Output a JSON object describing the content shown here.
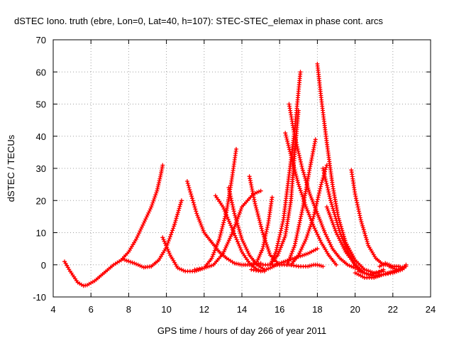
{
  "chart_data": {
    "type": "scatter",
    "title": "dSTEC Iono. truth (ebre, Lon=0, Lat=40, h=107): STEC-STEC_elemax in phase cont. arcs",
    "xlabel": "GPS time / hours of day 266 of year 2011",
    "ylabel": "dSTEC  / TECUs",
    "xlim": [
      4,
      24
    ],
    "ylim": [
      -10,
      70
    ],
    "xticks": [
      4,
      6,
      8,
      10,
      12,
      14,
      16,
      18,
      20,
      22,
      24
    ],
    "yticks": [
      -10,
      0,
      10,
      20,
      30,
      40,
      50,
      60,
      70
    ],
    "xtick_labels": [
      "4",
      "6",
      "8",
      "10",
      "12",
      "14",
      "16",
      "18",
      "20",
      "22",
      "24"
    ],
    "ytick_labels": [
      "-10",
      "0",
      "10",
      "20",
      "30",
      "40",
      "50",
      "60",
      "70"
    ],
    "grid": true,
    "series_color": "#ff0000",
    "marker": "plus",
    "series": [
      {
        "x": [
          4.6,
          4.9,
          5.3,
          5.6,
          5.8,
          6.2,
          6.7,
          7.2,
          7.7
        ],
        "y": [
          1,
          -2,
          -5.5,
          -6.5,
          -6.3,
          -5,
          -2.5,
          0,
          1.8
        ]
      },
      {
        "x": [
          7.6,
          8.0,
          8.4,
          8.8,
          9.2,
          9.5,
          9.7,
          9.8
        ],
        "y": [
          1.5,
          4,
          8,
          13,
          18,
          23,
          28,
          31
        ]
      },
      {
        "x": [
          7.8,
          8.3,
          8.8,
          9.2,
          9.6,
          10.0,
          10.4,
          10.8
        ],
        "y": [
          1.5,
          0.5,
          -0.8,
          -0.5,
          1.5,
          5.5,
          12,
          20
        ]
      },
      {
        "x": [
          9.8,
          10.2,
          10.6,
          11.0,
          11.5,
          12.0,
          12.4,
          12.8,
          13.2,
          13.5,
          13.7
        ],
        "y": [
          8.5,
          3,
          -1,
          -2,
          -2,
          -1,
          2,
          8,
          17,
          28,
          36
        ]
      },
      {
        "x": [
          11.1,
          11.3,
          11.6,
          12.0,
          12.4,
          12.8,
          13.2,
          13.6,
          14.0,
          14.4,
          15.0
        ],
        "y": [
          26,
          22,
          16,
          10,
          7,
          4,
          2,
          0.5,
          0,
          0,
          0.5
        ]
      },
      {
        "x": [
          11.5,
          12.0,
          12.5,
          13.0,
          13.5,
          14.0,
          14.6,
          15.0
        ],
        "y": [
          -1.5,
          -1,
          0,
          3.5,
          10,
          18,
          22,
          23
        ]
      },
      {
        "x": [
          12.6,
          13.0,
          13.5,
          14.0,
          14.4,
          14.8,
          15.2
        ],
        "y": [
          21.5,
          18,
          11,
          4,
          0.5,
          -1.5,
          -2
        ]
      },
      {
        "x": [
          13.3,
          13.6,
          14.0,
          14.4,
          14.8,
          15.2
        ],
        "y": [
          24,
          16,
          8,
          3,
          0,
          -1.5
        ]
      },
      {
        "x": [
          14.4,
          14.7,
          15.1,
          15.5,
          16.0
        ],
        "y": [
          27.5,
          19,
          10,
          3,
          0
        ]
      },
      {
        "x": [
          14.5,
          14.8,
          15.1,
          15.4,
          15.6
        ],
        "y": [
          0,
          1,
          5,
          13,
          21
        ]
      },
      {
        "x": [
          14.5,
          15.0,
          15.5,
          16.0,
          16.5,
          17.0,
          17.5,
          18.0
        ],
        "y": [
          -1.5,
          -2,
          -1,
          0.5,
          1.5,
          2.5,
          3.5,
          5
        ]
      },
      {
        "x": [
          15.0,
          15.5,
          16.0,
          16.5,
          17.0,
          17.5,
          17.8,
          18.0,
          18.3
        ],
        "y": [
          0,
          0,
          0,
          0,
          -0.5,
          -0.5,
          0,
          0,
          -0.5
        ]
      },
      {
        "x": [
          15.5,
          15.8,
          16.2,
          16.5,
          16.8,
          17.0,
          17.1
        ],
        "y": [
          0,
          4,
          14,
          28,
          42,
          54,
          60
        ]
      },
      {
        "x": [
          15.5,
          15.9,
          16.3,
          16.6,
          16.8,
          17.0
        ],
        "y": [
          0,
          3,
          9,
          20,
          35,
          48
        ]
      },
      {
        "x": [
          16.3,
          16.6,
          17.0,
          17.4,
          17.8,
          18.2,
          18.6,
          19.0
        ],
        "y": [
          41,
          34,
          25,
          18,
          12,
          7,
          3,
          0
        ]
      },
      {
        "x": [
          16.5,
          16.8,
          17.2,
          17.6,
          18.0,
          18.4,
          18.8,
          19.2,
          19.6,
          20.0
        ],
        "y": [
          50,
          40,
          30,
          22,
          16,
          10,
          5,
          2,
          0,
          -1
        ]
      },
      {
        "x": [
          16.4,
          16.8,
          17.2,
          17.6,
          17.9
        ],
        "y": [
          0,
          6,
          17,
          30,
          39
        ]
      },
      {
        "x": [
          16.6,
          17.0,
          17.4,
          17.8,
          18.2,
          18.5
        ],
        "y": [
          0,
          3,
          8,
          15,
          25,
          31
        ]
      },
      {
        "x": [
          18.0,
          18.2,
          18.5,
          18.8,
          19.1,
          19.5,
          20.0,
          20.5,
          21.0,
          21.5
        ],
        "y": [
          62.5,
          52,
          38,
          25,
          15,
          7,
          1.5,
          -1.5,
          -2.5,
          -2
        ]
      },
      {
        "x": [
          18.3,
          18.7,
          19.2,
          19.7,
          20.2,
          20.7,
          21.2,
          21.5
        ],
        "y": [
          30,
          20,
          10,
          3,
          -2,
          -3,
          -2.5,
          -1.5
        ]
      },
      {
        "x": [
          18.5,
          19.0,
          19.5,
          20.0,
          20.5,
          21.0,
          21.5,
          22.0,
          22.5
        ],
        "y": [
          18,
          10,
          4,
          0,
          -2.5,
          -3.5,
          -3,
          -2,
          -1
        ]
      },
      {
        "x": [
          19.8,
          20.0,
          20.3,
          20.7,
          21.1,
          21.5,
          21.8
        ],
        "y": [
          29.5,
          22,
          14,
          6,
          2,
          0,
          0
        ]
      },
      {
        "x": [
          20.0,
          20.5,
          21.0,
          21.5,
          22.0,
          22.5,
          22.7
        ],
        "y": [
          -2.5,
          -4,
          -4,
          -3,
          -2.5,
          -1.5,
          -0.5
        ]
      },
      {
        "x": [
          21.3,
          21.6,
          22.0,
          22.3,
          22.6
        ],
        "y": [
          -0.5,
          0.5,
          -0.5,
          -0.5,
          -1
        ]
      },
      {
        "x": [
          21.8,
          22.2,
          22.5,
          22.7
        ],
        "y": [
          -0.5,
          -1.5,
          -1,
          0
        ]
      }
    ]
  }
}
